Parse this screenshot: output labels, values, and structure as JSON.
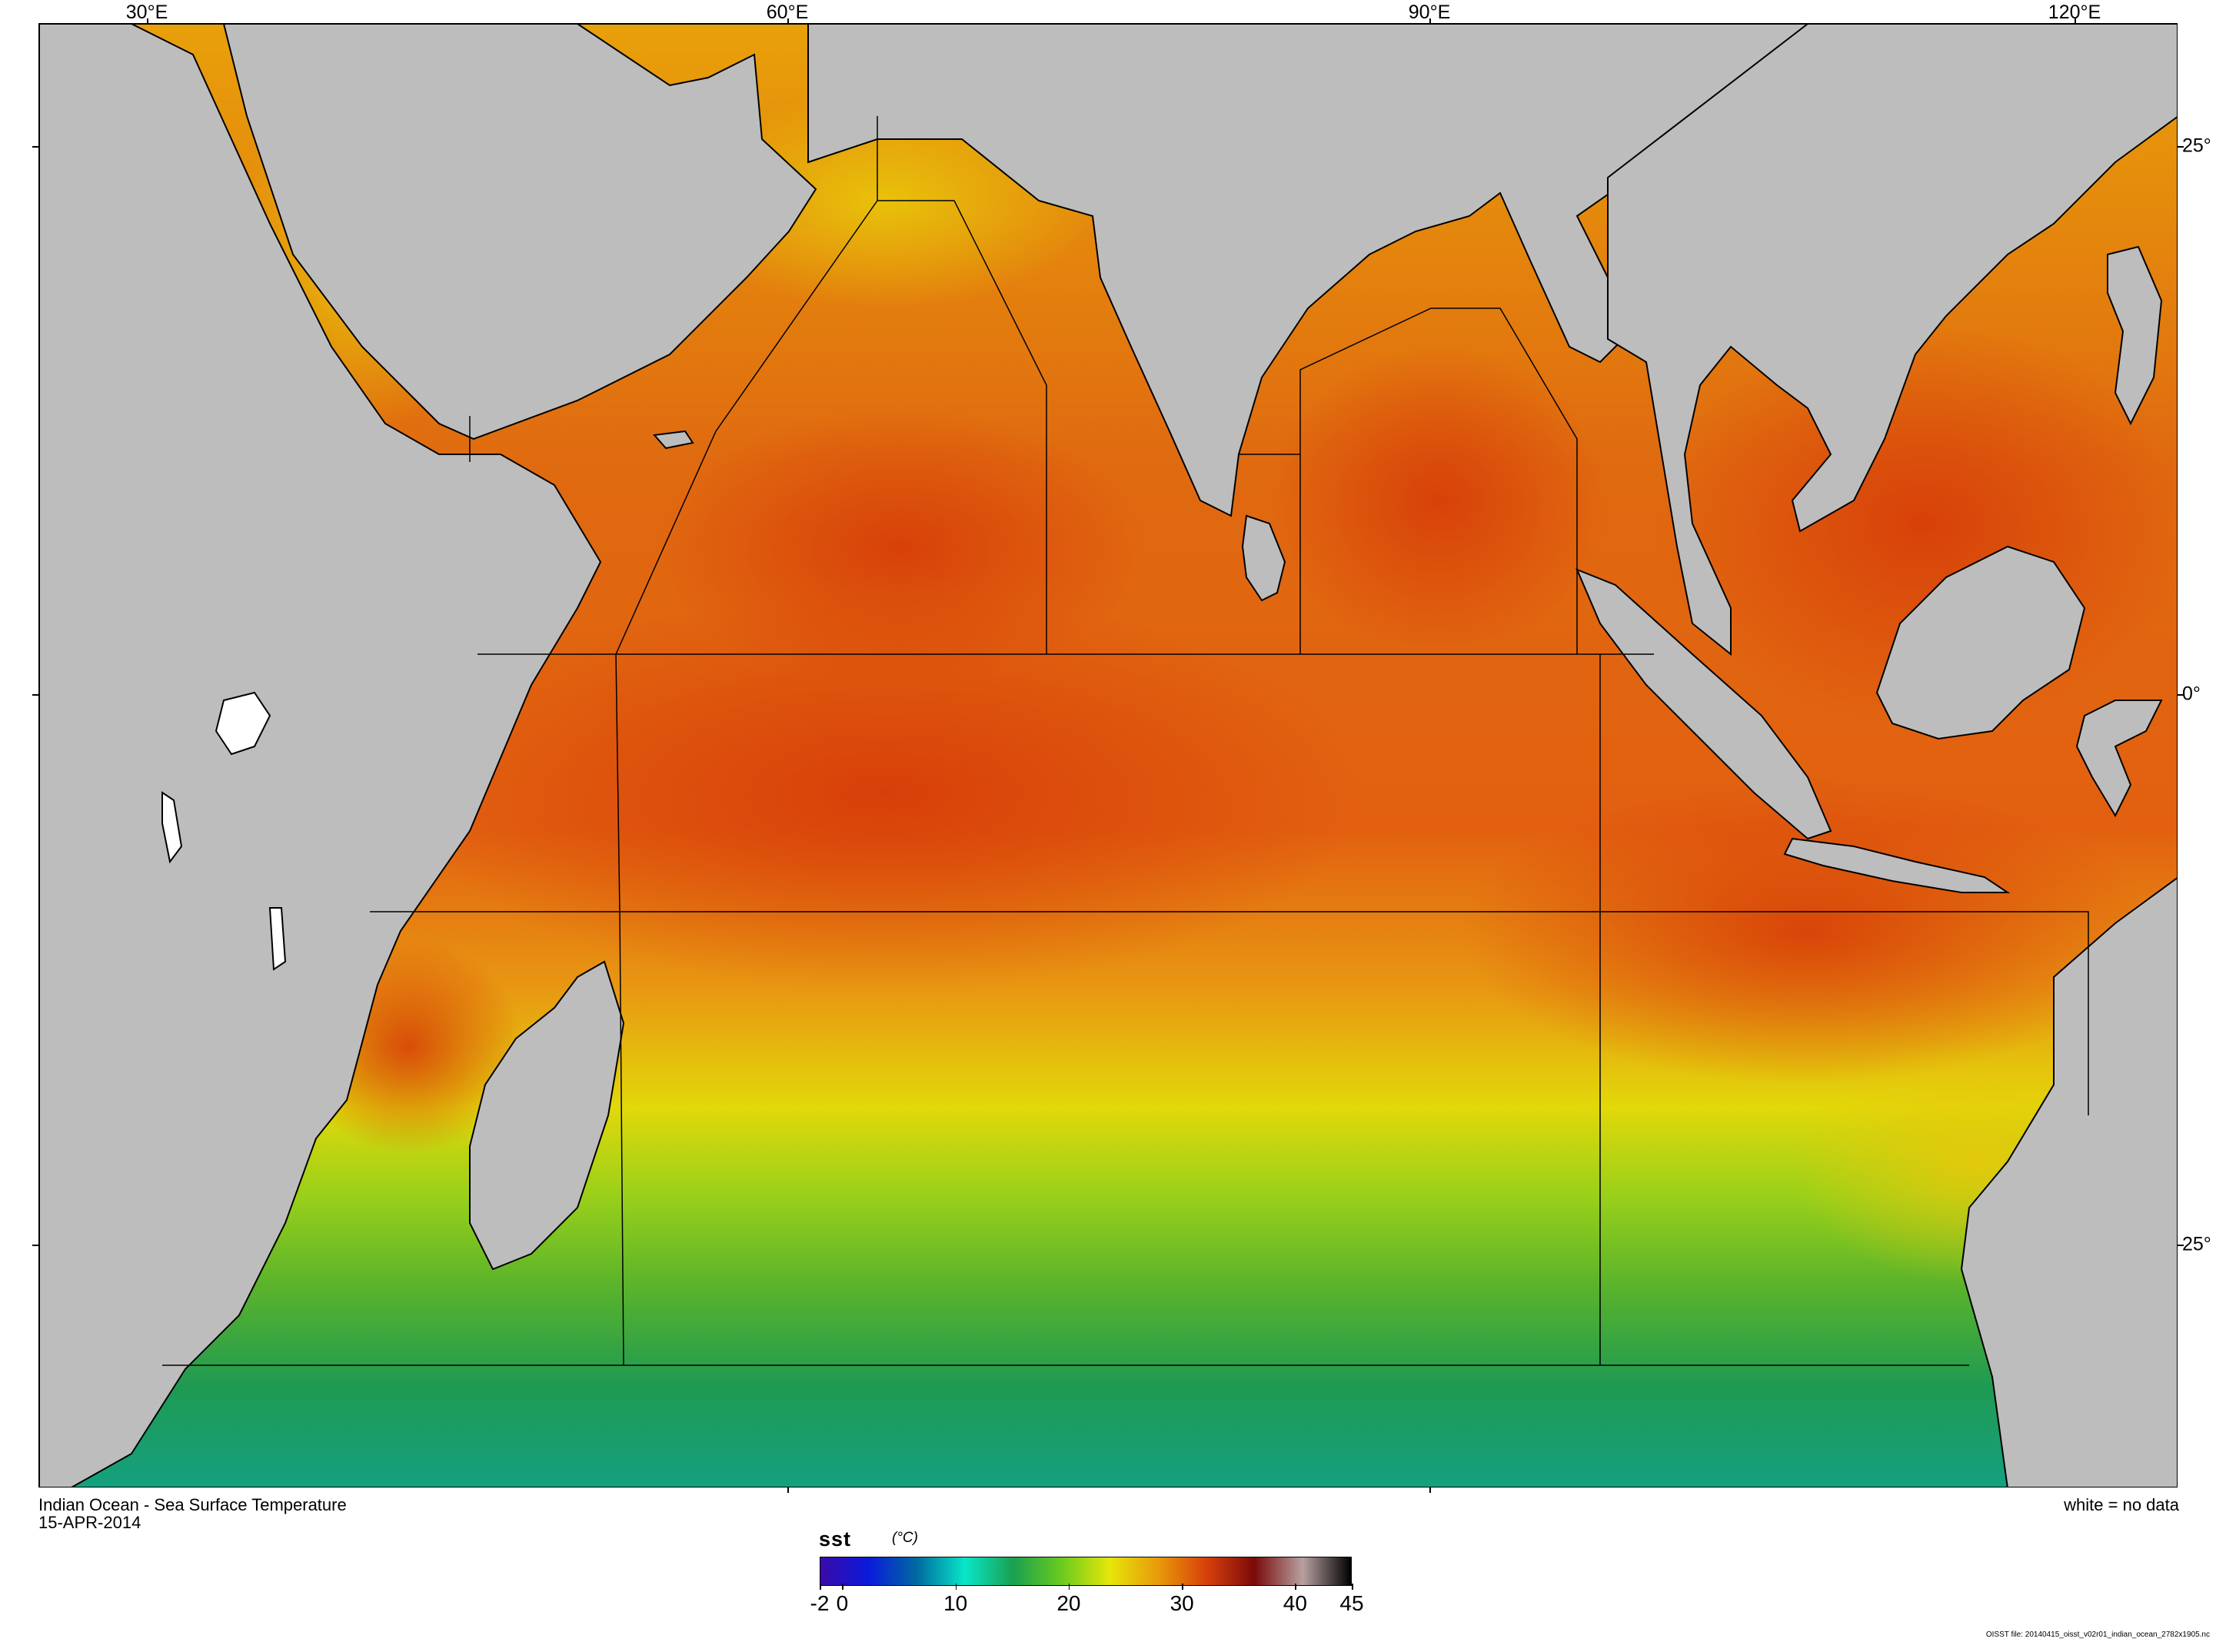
{
  "map": {
    "lon_labels": [
      "30°E",
      "60°E",
      "90°E",
      "120°E"
    ],
    "lat_labels": [
      "25°",
      "0°",
      "25°"
    ],
    "title": "Indian Ocean - Sea Surface Temperature",
    "date": "15-APR-2014",
    "nodata_note": "white = no data",
    "file_info": "OISST file: 20140415_oisst_v02r01_indian_ocean_2782x1905.nc",
    "land_color": "#bdbdbd",
    "nodata_color": "#ffffff"
  },
  "colorbar": {
    "variable": "sst",
    "units": "(°C)",
    "ticks": [
      "-2",
      "0",
      "10",
      "20",
      "30",
      "40",
      "45"
    ],
    "range": [
      -2,
      45
    ],
    "colors": [
      "#3a0aa8",
      "#0a1adb",
      "#006aa0",
      "#0ae6c8",
      "#1aa050",
      "#6acb1e",
      "#e6e60a",
      "#e89a0a",
      "#d8400a",
      "#7a0a0a",
      "#b8a0a0",
      "#000000"
    ]
  }
}
